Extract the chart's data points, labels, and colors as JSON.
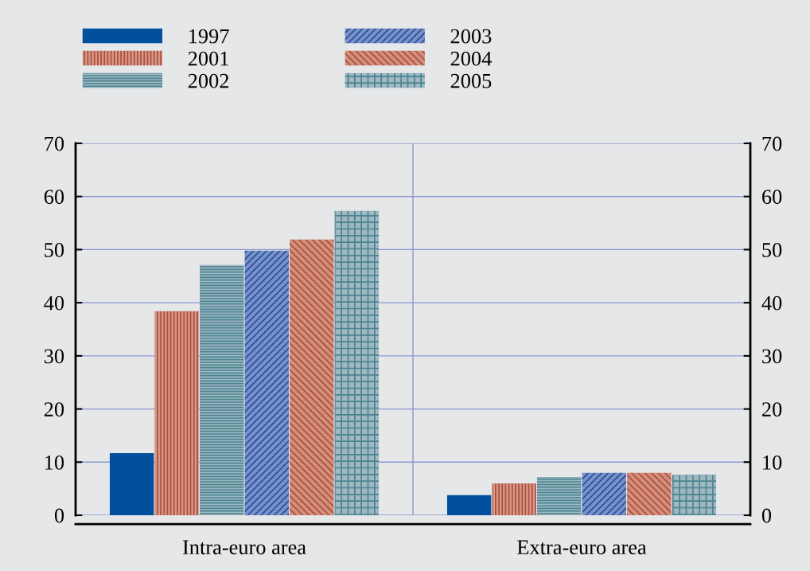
{
  "chart_data": {
    "type": "bar",
    "categories": [
      "Intra-euro area",
      "Extra-euro area"
    ],
    "series": [
      {
        "name": "1997",
        "color": "#00509e",
        "values": [
          11.7,
          3.8
        ]
      },
      {
        "name": "2001",
        "color": "#d49a88",
        "values": [
          38.4,
          6.0
        ]
      },
      {
        "name": "2002",
        "color": "#a0b8c2",
        "values": [
          47.1,
          7.2
        ]
      },
      {
        "name": "2003",
        "color": "#7b91c4",
        "values": [
          49.8,
          8.0
        ]
      },
      {
        "name": "2004",
        "color": "#d0907c",
        "values": [
          51.9,
          8.0
        ]
      },
      {
        "name": "2005",
        "color": "#a0b8c2",
        "values": [
          57.3,
          7.6
        ]
      }
    ],
    "ylim": [
      0,
      70
    ],
    "yticks": [
      0,
      10,
      20,
      30,
      40,
      50,
      60,
      70
    ],
    "y2lim": [
      0,
      70
    ],
    "y2ticks": [
      0,
      10,
      20,
      30,
      40,
      50,
      60,
      70
    ],
    "grid": "y",
    "legend": "top left"
  }
}
